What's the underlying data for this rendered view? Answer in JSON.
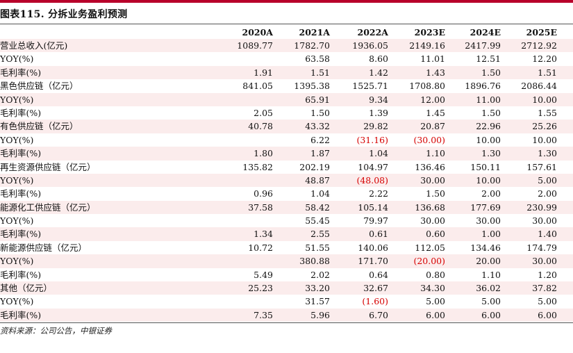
{
  "title": "图表115. 分拆业务盈利预测",
  "source": "资料来源：公司公告，中银证券",
  "columns": [
    "2020A",
    "2021A",
    "2022A",
    "2023E",
    "2024E",
    "2025E"
  ],
  "rows": [
    {
      "label": "营业总收入(亿元)",
      "shade": true,
      "values": [
        "1089.77",
        "1782.70",
        "1936.05",
        "2149.16",
        "2417.99",
        "2712.92"
      ]
    },
    {
      "label": "YOY(%)",
      "shade": false,
      "values": [
        "",
        "63.58",
        "8.60",
        "11.01",
        "12.51",
        "12.20"
      ]
    },
    {
      "label": "毛利率(%)",
      "shade": true,
      "values": [
        "1.91",
        "1.51",
        "1.42",
        "1.43",
        "1.50",
        "1.51"
      ]
    },
    {
      "label": "黑色供应链（亿元）",
      "shade": false,
      "values": [
        "841.05",
        "1395.38",
        "1525.71",
        "1708.80",
        "1896.76",
        "2086.44"
      ]
    },
    {
      "label": "YOY(%)",
      "shade": true,
      "values": [
        "",
        "65.91",
        "9.34",
        "12.00",
        "11.00",
        "10.00"
      ]
    },
    {
      "label": "毛利率(%)",
      "shade": false,
      "values": [
        "2.05",
        "1.50",
        "1.39",
        "1.45",
        "1.50",
        "1.55"
      ]
    },
    {
      "label": "有色供应链（亿元）",
      "shade": true,
      "values": [
        "40.78",
        "43.32",
        "29.82",
        "20.87",
        "22.96",
        "25.26"
      ]
    },
    {
      "label": "YOY(%)",
      "shade": false,
      "values": [
        "",
        "6.22",
        "(31.16)",
        "(30.00)",
        "10.00",
        "10.00"
      ]
    },
    {
      "label": "毛利率(%)",
      "shade": true,
      "values": [
        "1.80",
        "1.87",
        "1.04",
        "1.10",
        "1.30",
        "1.30"
      ]
    },
    {
      "label": "再生资源供应链（亿元）",
      "shade": false,
      "values": [
        "135.82",
        "202.19",
        "104.97",
        "136.46",
        "150.11",
        "157.61"
      ]
    },
    {
      "label": "YOY(%)",
      "shade": true,
      "values": [
        "",
        "48.87",
        "(48.08)",
        "30.00",
        "10.00",
        "5.00"
      ]
    },
    {
      "label": "毛利率(%)",
      "shade": false,
      "values": [
        "0.96",
        "1.04",
        "2.22",
        "1.50",
        "2.00",
        "2.00"
      ]
    },
    {
      "label": "能源化工供应链（亿元）",
      "shade": true,
      "values": [
        "37.58",
        "58.42",
        "105.14",
        "136.68",
        "177.69",
        "230.99"
      ]
    },
    {
      "label": "YOY(%)",
      "shade": false,
      "values": [
        "",
        "55.45",
        "79.97",
        "30.00",
        "30.00",
        "30.00"
      ]
    },
    {
      "label": "毛利率(%)",
      "shade": true,
      "values": [
        "1.34",
        "2.55",
        "0.61",
        "0.60",
        "1.00",
        "1.40"
      ]
    },
    {
      "label": "新能源供应链（亿元）",
      "shade": false,
      "values": [
        "10.72",
        "51.55",
        "140.06",
        "112.05",
        "134.46",
        "174.79"
      ]
    },
    {
      "label": "YOY(%)",
      "shade": true,
      "values": [
        "",
        "380.88",
        "171.70",
        "(20.00)",
        "20.00",
        "30.00"
      ]
    },
    {
      "label": "毛利率(%)",
      "shade": false,
      "values": [
        "5.49",
        "2.02",
        "0.64",
        "0.80",
        "1.10",
        "1.20"
      ]
    },
    {
      "label": "其他（亿元）",
      "shade": true,
      "values": [
        "25.23",
        "33.20",
        "32.67",
        "34.30",
        "36.02",
        "37.82"
      ]
    },
    {
      "label": "YOY(%)",
      "shade": false,
      "values": [
        "",
        "31.57",
        "(1.60)",
        "5.00",
        "5.00",
        "5.00"
      ]
    },
    {
      "label": "毛利率(%)",
      "shade": true,
      "values": [
        "7.35",
        "5.96",
        "6.70",
        "6.00",
        "6.00",
        "6.00"
      ]
    }
  ]
}
